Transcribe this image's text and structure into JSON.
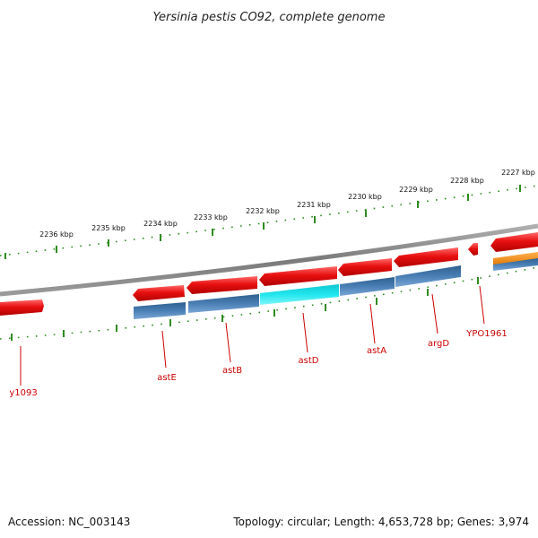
{
  "title": "Yersinia pestis CO92, complete genome",
  "footer": {
    "accession": "Accession: NC_003143",
    "summary": "Topology: circular; Length: 4,653,728 bp; Genes: 3,974"
  },
  "colors": {
    "forward_gene": "#e81010",
    "reverse_gene": "#e81010",
    "cds": "#4a7fb5",
    "highlight_cds": "#22e6ee",
    "orange_feature": "#f08a10",
    "backbone": "#8a8a8a",
    "tick": "#2e8b20",
    "label": "#cc0000"
  },
  "kbp_ticks": [
    "2236 kbp",
    "2235 kbp",
    "2234 kbp",
    "2233 kbp",
    "2232 kbp",
    "2231 kbp",
    "2230 kbp",
    "2229 kbp",
    "2228 kbp",
    "2227 kbp"
  ],
  "gene_labels": [
    "y1093",
    "astE",
    "astB",
    "astD",
    "astA",
    "argD",
    "YPO1961"
  ]
}
